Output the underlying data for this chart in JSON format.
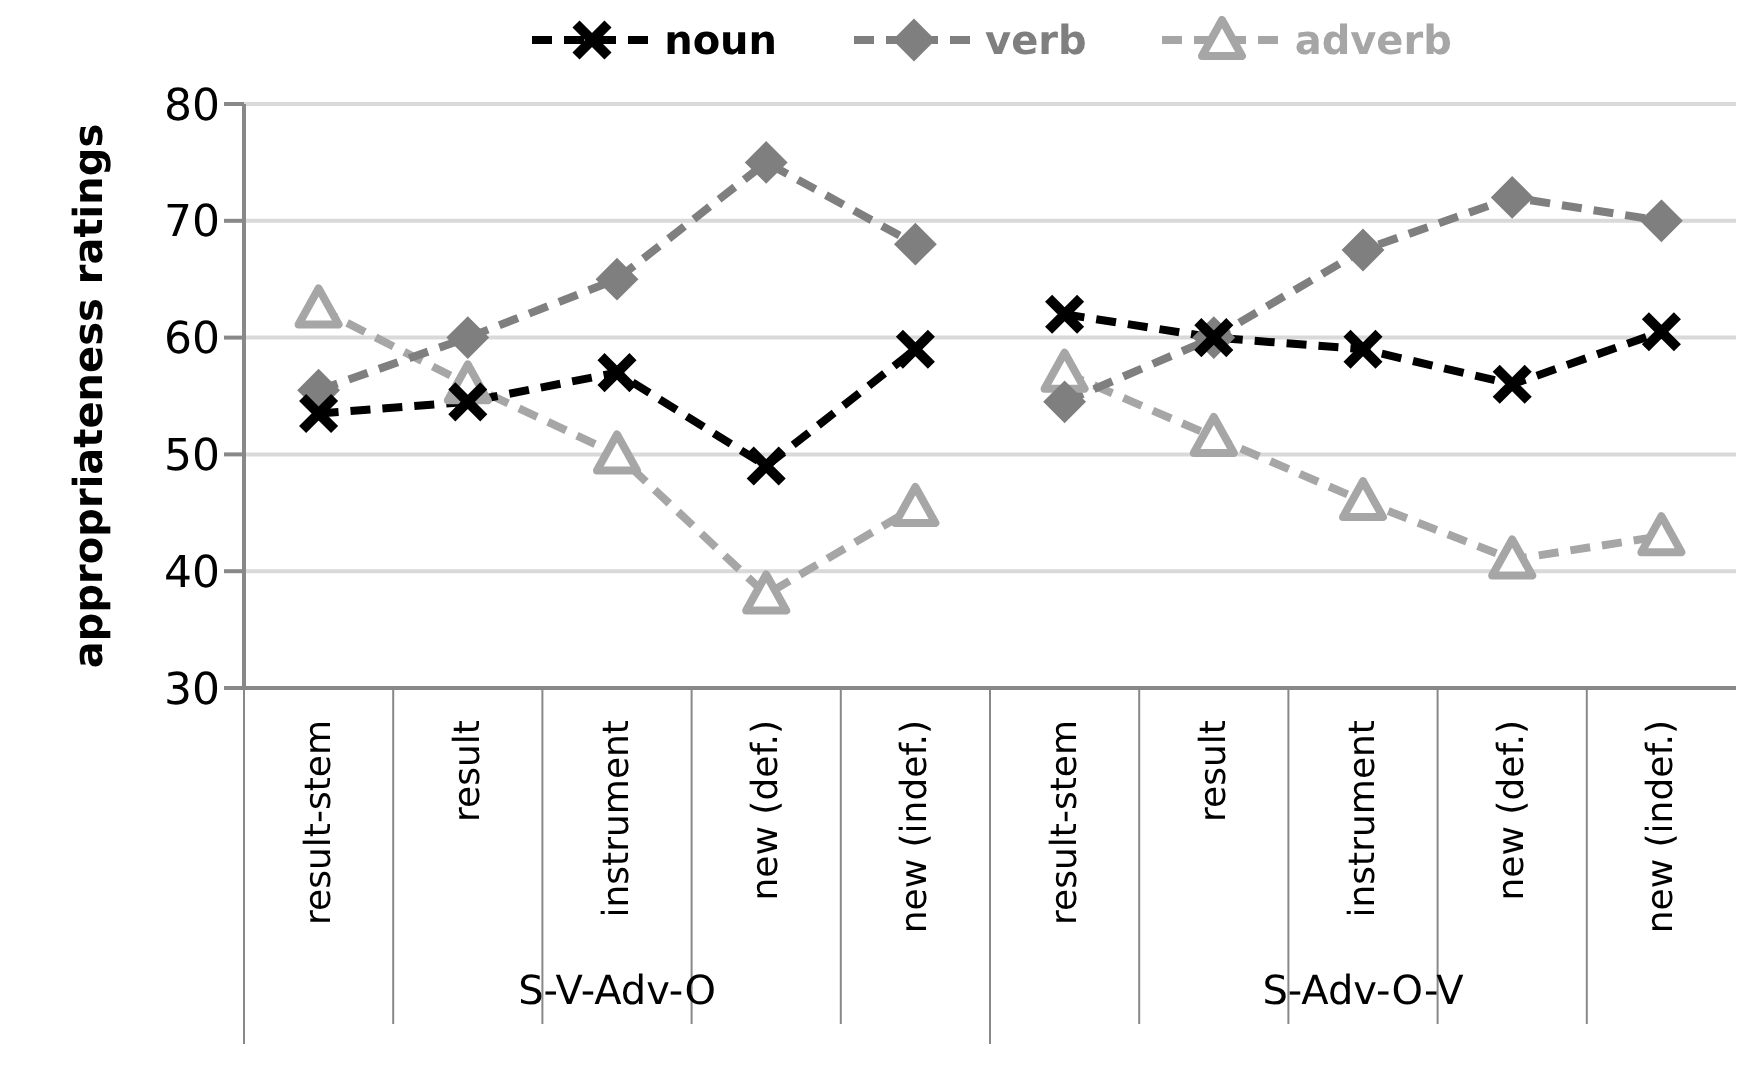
{
  "chart_data": {
    "type": "line",
    "ylabel": "appropriateness ratings",
    "categories": [
      "result-stem",
      "result",
      "instrument",
      "new (def.)",
      "new (indef.)",
      "result-stem",
      "result",
      "instrument",
      "new (def.)",
      "new (indef.)"
    ],
    "annotations": [
      "S-V-Adv-O",
      "S-Adv-O-V"
    ],
    "series": [
      {
        "name": "noun",
        "color": "#000000",
        "marker": "cross",
        "values": [
          53.5,
          54.5,
          57,
          49,
          59,
          null,
          null,
          null,
          null,
          null
        ]
      },
      {
        "name": "verb",
        "color": "#7f7f7f",
        "marker": "diamond",
        "values": [
          55.5,
          60,
          65,
          75,
          68,
          null,
          null,
          null,
          null,
          null
        ]
      },
      {
        "name": "adverb",
        "color": "#a6a6a6",
        "marker": "triangle",
        "values": [
          62.5,
          56,
          50,
          38,
          45.5,
          null,
          null,
          null,
          null,
          null
        ]
      },
      {
        "color": "#000000",
        "marker": "cross",
        "values": [
          null,
          null,
          null,
          null,
          null,
          62,
          60,
          59,
          56,
          60.5
        ]
      },
      {
        "color": "#7f7f7f",
        "marker": "diamond",
        "values": [
          null,
          null,
          null,
          null,
          null,
          54.5,
          60,
          67.5,
          72,
          70
        ]
      },
      {
        "color": "#a6a6a6",
        "marker": "triangle",
        "values": [
          null,
          null,
          null,
          null,
          null,
          57,
          51.5,
          46,
          41,
          43
        ]
      }
    ],
    "ylim": [
      30,
      80
    ],
    "yticks": [
      30,
      40,
      50,
      60,
      70,
      80
    ],
    "grid": "y",
    "legend": "top",
    "line_style": "dashed"
  }
}
